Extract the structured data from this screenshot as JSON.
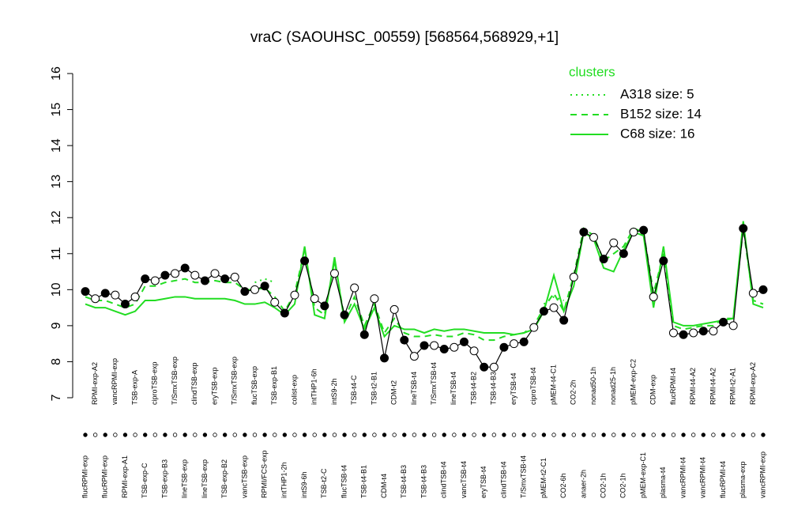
{
  "chart_data": {
    "type": "line",
    "title": "vraC (SAOUHSC_00559) [568564,568929,+1]",
    "categories": [
      "flucRPMI-exp",
      "RPMI-exp-A2",
      "flucRPMI-exp",
      "vancRPMI-exp",
      "RPMI-exp-A1",
      "TSB-exp-A",
      "TSB-exp-C",
      "ciproTSB-exp",
      "TSB-exp-B3",
      "T/SmxTSB-exp",
      "lineTSB-exp",
      "clindTSB-exp",
      "lineTSB-exp",
      "eryTSB-exp",
      "TSB-exp-B2",
      "T/SmxTSB-exp",
      "vancTSB-exp",
      "flucTSB-exp",
      "RPMI/FCS-exp",
      "TSB-exp-B1",
      "intTHP1-2h",
      "colist-exp",
      "intS9-6h",
      "intTHP1-6h",
      "TSB-t2-C",
      "intS9-2h",
      "flucTSB-t4",
      "TSB-t4-C",
      "TSB-t4-B1",
      "TSB-t2-B1",
      "CDM-t4",
      "CDM-t2",
      "TSB-t4-B3",
      "lineTSB-t4",
      "TSB-t4-B3",
      "T/SmxTSB-t4",
      "clindTSB-t4",
      "lineTSB-t4",
      "vancTSB-t4",
      "TSB-t4-B2",
      "eryTSB-t4",
      "TSB-t4-B3",
      "clindTSB-t4",
      "eryTSB-t4",
      "T/SmxTSB-t4",
      "ciproTSB-t4",
      "pMEM-t2-C1",
      "pMEM-t4-C1",
      "CO2-6h",
      "CO2-2h",
      "anaer-2h",
      "nonad50-1h",
      "CO2-1h",
      "nonad25-1h",
      "CO2-1h",
      "pMEM-exp-C2",
      "pMEM-exp-C1",
      "CDM-exp",
      "plasma-t4",
      "flucRPMI-t4",
      "vancRPMI-t4",
      "RPMI-t4-A2",
      "vancRPMI-t4",
      "RPMI-t4-A2",
      "flucRPMI-t4",
      "RPMI-t2-A1",
      "plasma-exp",
      "RPMI-exp-A2",
      "vancRPMI-exp"
    ],
    "values": [
      9.95,
      9.75,
      9.9,
      9.85,
      9.6,
      9.8,
      10.3,
      10.25,
      10.4,
      10.45,
      10.6,
      10.4,
      10.25,
      10.45,
      10.3,
      10.35,
      9.95,
      10.0,
      10.1,
      9.65,
      9.35,
      9.85,
      10.8,
      9.75,
      9.55,
      10.45,
      9.3,
      10.05,
      8.75,
      9.75,
      8.1,
      9.45,
      8.6,
      8.15,
      8.45,
      8.45,
      8.35,
      8.4,
      8.55,
      8.3,
      7.85,
      7.85,
      8.4,
      8.5,
      8.55,
      8.95,
      9.4,
      9.5,
      9.15,
      10.35,
      11.6,
      11.45,
      10.85,
      11.3,
      11.0,
      11.6,
      11.65,
      9.8,
      10.8,
      8.8,
      8.75,
      8.8,
      8.85,
      8.85,
      9.1,
      9.0,
      11.7,
      9.9,
      10.0
    ],
    "series": [
      {
        "name": "A318 size: 5",
        "dash": "dotted",
        "color": "#22dd22",
        "values": [
          null,
          null,
          null,
          null,
          null,
          null,
          null,
          null,
          null,
          null,
          null,
          null,
          null,
          null,
          null,
          null,
          null,
          10.2,
          10.3,
          10.2,
          null,
          10.3,
          null,
          null,
          null,
          null,
          null,
          null,
          null,
          null,
          null,
          null,
          null,
          null,
          null,
          null,
          null,
          null,
          null,
          null,
          null,
          null,
          null,
          null,
          null,
          null,
          9.6,
          9.8,
          9.7,
          null,
          null,
          null,
          null,
          null,
          null,
          null,
          null,
          null,
          null,
          null,
          null,
          null,
          null,
          null,
          null,
          null,
          null,
          null,
          null
        ]
      },
      {
        "name": "B152 size: 14",
        "dash": "dashed",
        "color": "#22dd22",
        "values": [
          9.8,
          9.7,
          9.7,
          9.6,
          9.5,
          9.6,
          10.1,
          10.1,
          10.2,
          10.25,
          10.3,
          10.2,
          10.2,
          10.25,
          10.2,
          10.2,
          10.0,
          10.0,
          10.05,
          9.8,
          9.4,
          9.9,
          11.1,
          9.5,
          9.3,
          10.8,
          9.2,
          9.8,
          9.0,
          9.6,
          8.8,
          9.2,
          8.8,
          8.7,
          8.7,
          8.75,
          8.7,
          8.7,
          8.8,
          8.75,
          8.6,
          8.6,
          8.7,
          8.75,
          8.8,
          9.0,
          9.5,
          9.9,
          9.4,
          10.4,
          11.7,
          11.5,
          10.8,
          11.0,
          11.2,
          11.7,
          11.6,
          9.9,
          11.0,
          9.0,
          8.9,
          8.95,
          9.0,
          9.0,
          9.2,
          9.2,
          11.7,
          9.7,
          9.6
        ]
      },
      {
        "name": "C68 size: 16",
        "dash": "solid",
        "color": "#22dd22",
        "values": [
          9.6,
          9.5,
          9.5,
          9.4,
          9.3,
          9.4,
          9.7,
          9.7,
          9.75,
          9.8,
          9.8,
          9.75,
          9.75,
          9.75,
          9.75,
          9.7,
          9.6,
          9.6,
          9.65,
          9.5,
          9.3,
          9.6,
          11.2,
          9.3,
          9.2,
          10.9,
          9.1,
          9.6,
          8.9,
          9.5,
          8.7,
          9.0,
          8.9,
          8.9,
          8.8,
          8.9,
          8.85,
          8.9,
          8.9,
          8.85,
          8.8,
          8.8,
          8.8,
          8.75,
          8.8,
          8.9,
          9.4,
          10.4,
          9.4,
          10.1,
          11.6,
          11.4,
          10.6,
          10.5,
          11.1,
          11.6,
          11.5,
          9.5,
          11.2,
          9.1,
          9.0,
          9.0,
          9.05,
          9.1,
          9.15,
          9.2,
          11.9,
          9.6,
          9.5
        ]
      }
    ],
    "legend_title": "clusters",
    "legend_position": "top-right",
    "point_color": "#000000",
    "ylim": [
      7,
      16
    ],
    "yticks": [
      7,
      8,
      9,
      10,
      11,
      12,
      13,
      14,
      15,
      16
    ]
  }
}
